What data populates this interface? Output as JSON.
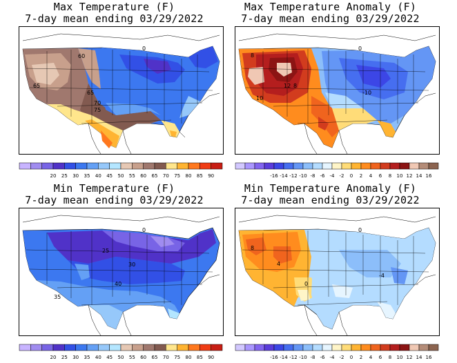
{
  "panels": [
    {
      "title_line1": "Max Temperature (F)",
      "title_line2": "7-day mean ending 03/29/2022",
      "map_labels": [
        "60",
        "65",
        "65",
        "70",
        "75",
        "0"
      ],
      "legend": {
        "colors": [
          "#c8b4ff",
          "#a08cf0",
          "#7864e6",
          "#5032c8",
          "#3250e6",
          "#3c78f0",
          "#64a0f5",
          "#96c8fa",
          "#b4e6ff",
          "#e6c8b4",
          "#c8a08c",
          "#a0786e",
          "#825a50",
          "#ffe68c",
          "#ffb432",
          "#ff781e",
          "#f03c14",
          "#c81e14"
        ],
        "labels": [
          "20",
          "25",
          "30",
          "35",
          "40",
          "45",
          "50",
          "55",
          "60",
          "65",
          "70",
          "75",
          "80",
          "85",
          "90"
        ]
      }
    },
    {
      "title_line1": "Max Temperature Anomaly (F)",
      "title_line2": "7-day mean ending 03/29/2022",
      "map_labels": [
        "8",
        "12",
        "8",
        "10",
        "-10",
        "0"
      ],
      "legend": {
        "colors": [
          "#d2c8ff",
          "#aa96ff",
          "#8264f0",
          "#5a3cdc",
          "#3c46e6",
          "#466ef0",
          "#6496f5",
          "#8cbefa",
          "#b4dcff",
          "#e6f5ff",
          "#fff5c8",
          "#ffdc78",
          "#ffb432",
          "#ff8c1e",
          "#f0641e",
          "#d23c1e",
          "#b41e1e",
          "#8c1414",
          "#f0c8b4",
          "#b48c78",
          "#8c6450"
        ],
        "labels": [
          "-16",
          "-14",
          "-12",
          "-10",
          "-8",
          "-6",
          "-4",
          "-2",
          "0",
          "2",
          "4",
          "6",
          "8",
          "10",
          "12",
          "14",
          "16"
        ]
      }
    },
    {
      "title_line1": "Min Temperature (F)",
      "title_line2": "7-day mean ending 03/29/2022",
      "map_labels": [
        "25",
        "30",
        "40",
        "35",
        "0"
      ],
      "legend": {
        "colors": [
          "#c8b4ff",
          "#a08cf0",
          "#7864e6",
          "#5032c8",
          "#3250e6",
          "#3c78f0",
          "#64a0f5",
          "#96c8fa",
          "#b4e6ff",
          "#e6c8b4",
          "#c8a08c",
          "#a0786e",
          "#825a50",
          "#ffe68c",
          "#ffb432",
          "#ff781e",
          "#f03c14",
          "#c81e14"
        ],
        "labels": [
          "20",
          "25",
          "30",
          "35",
          "40",
          "45",
          "50",
          "55",
          "60",
          "65",
          "70",
          "75",
          "80",
          "85",
          "90"
        ]
      }
    },
    {
      "title_line1": "Min Temperature Anomaly (F)",
      "title_line2": "7-day mean ending 03/29/2022",
      "map_labels": [
        "8",
        "4",
        "0",
        "-4",
        "0"
      ],
      "legend": {
        "colors": [
          "#d2c8ff",
          "#aa96ff",
          "#8264f0",
          "#5a3cdc",
          "#3c46e6",
          "#466ef0",
          "#6496f5",
          "#8cbefa",
          "#b4dcff",
          "#e6f5ff",
          "#fff5c8",
          "#ffdc78",
          "#ffb432",
          "#ff8c1e",
          "#f0641e",
          "#d23c1e",
          "#b41e1e",
          "#8c1414",
          "#f0c8b4",
          "#b48c78",
          "#8c6450"
        ],
        "labels": [
          "-16",
          "-14",
          "-12",
          "-10",
          "-8",
          "-6",
          "-4",
          "-2",
          "0",
          "2",
          "4",
          "6",
          "8",
          "10",
          "12",
          "14",
          "16"
        ]
      }
    }
  ]
}
